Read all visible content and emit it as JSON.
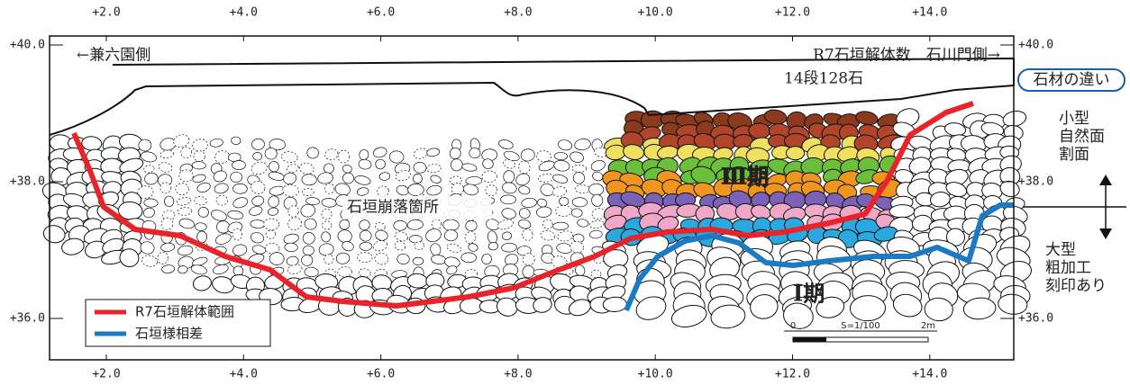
{
  "axis": {
    "top": [
      "+2.0",
      "+4.0",
      "+6.0",
      "+8.0",
      "+10.0",
      "+12.0",
      "+14.0"
    ],
    "bottom": [
      "+2.0",
      "+4.0",
      "+6.0",
      "+8.0",
      "+10.0",
      "+12.0",
      "+14.0"
    ],
    "left": [
      "+40.0",
      "+38.0",
      "+36.0"
    ],
    "right": [
      "+40.0",
      "+38.0",
      "+36.0"
    ]
  },
  "annotations": {
    "left_side": "←兼六園側",
    "right_side": "R7石垣解体数　石川門側→",
    "count": "14段128石",
    "collapse": "石垣崩落箇所",
    "phase3": "Ⅲ期",
    "phase1": "Ⅰ期"
  },
  "side_note": {
    "title": "石材の違い",
    "small": [
      "小型",
      "自然面",
      "割面"
    ],
    "large": [
      "大型",
      "粗加工",
      "刻印あり"
    ]
  },
  "legend": [
    {
      "label": "R7石垣解体範囲",
      "color": "#e8232a"
    },
    {
      "label": "石垣様相差",
      "color": "#1a7ac4"
    }
  ],
  "scale": {
    "zero": "0",
    "ratio": "S=1/100",
    "end": "2m"
  }
}
